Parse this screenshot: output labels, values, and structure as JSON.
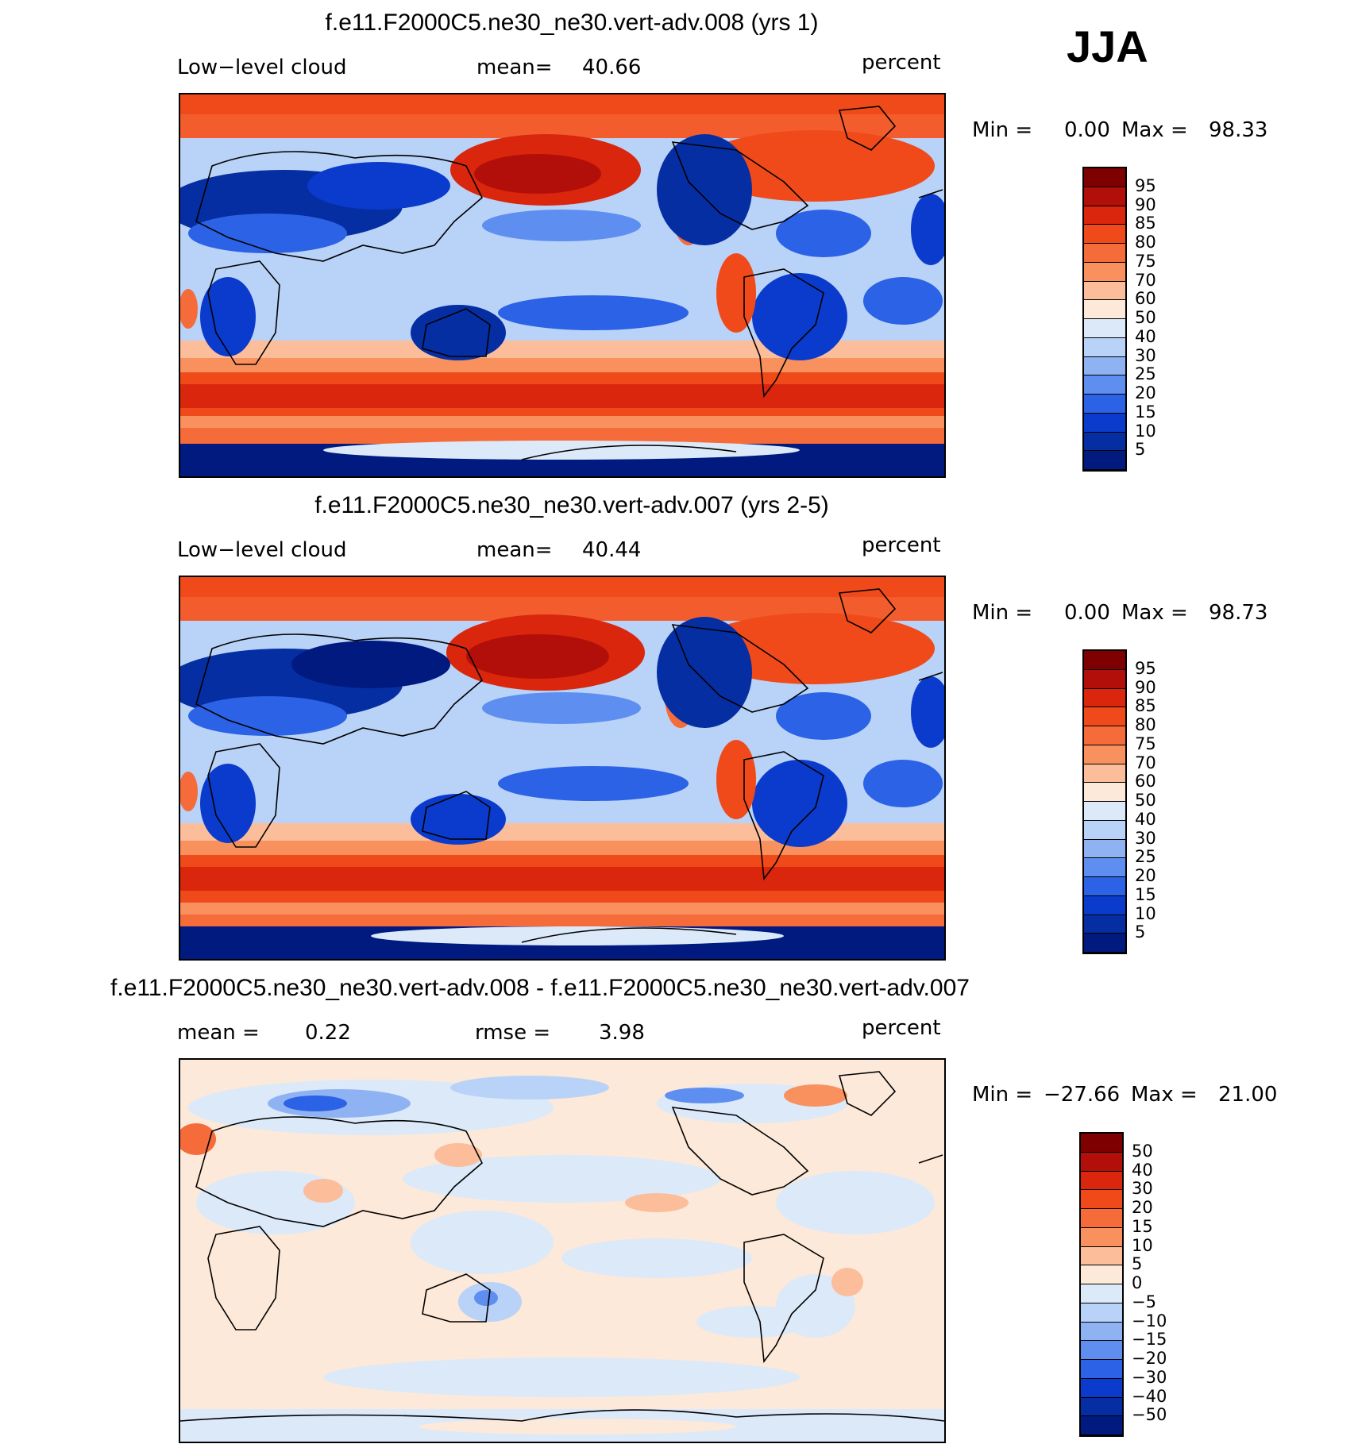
{
  "season": "JJA",
  "panels": [
    {
      "title": "f.e11.F2000C5.ne30_ne30.vert-adv.008 (yrs 1)",
      "left_label": "Low−level cloud",
      "stat1_label": "mean=",
      "stat1_value": "40.66",
      "stat2_label": "",
      "stat2_value": "",
      "units": "percent",
      "min_label": "Min =",
      "min_value": "0.00",
      "max_label": "Max =",
      "max_value": "98.33",
      "colorbar_labels": [
        "95",
        "90",
        "85",
        "80",
        "75",
        "70",
        "60",
        "50",
        "40",
        "30",
        "25",
        "20",
        "15",
        "10",
        "5"
      ]
    },
    {
      "title": "f.e11.F2000C5.ne30_ne30.vert-adv.007 (yrs 2-5)",
      "left_label": "Low−level cloud",
      "stat1_label": "mean=",
      "stat1_value": "40.44",
      "stat2_label": "",
      "stat2_value": "",
      "units": "percent",
      "min_label": "Min =",
      "min_value": "0.00",
      "max_label": "Max =",
      "max_value": "98.73",
      "colorbar_labels": [
        "95",
        "90",
        "85",
        "80",
        "75",
        "70",
        "60",
        "50",
        "40",
        "30",
        "25",
        "20",
        "15",
        "10",
        "5"
      ]
    },
    {
      "title": "f.e11.F2000C5.ne30_ne30.vert-adv.008 - f.e11.F2000C5.ne30_ne30.vert-adv.007",
      "left_label": "",
      "stat1_label": "mean =",
      "stat1_value": "0.22",
      "stat2_label": "rmse =",
      "stat2_value": "3.98",
      "units": "percent",
      "min_label": "Min =",
      "min_value": "−27.66",
      "max_label": "Max =",
      "max_value": "21.00",
      "colorbar_labels": [
        "50",
        "40",
        "30",
        "20",
        "15",
        "10",
        "5",
        "0",
        "−5",
        "−10",
        "−15",
        "−20",
        "−30",
        "−40",
        "−50"
      ]
    }
  ],
  "colorbar_colors": [
    "#7f0000",
    "#b30f0a",
    "#d9260c",
    "#f04a1a",
    "#f56b3a",
    "#f9915f",
    "#fcbd9b",
    "#fde9d9",
    "#dce9f9",
    "#b9d2f7",
    "#8fb3f2",
    "#5e8ff0",
    "#2b62e6",
    "#0a3bcc",
    "#062ea3",
    "#001a80"
  ]
}
